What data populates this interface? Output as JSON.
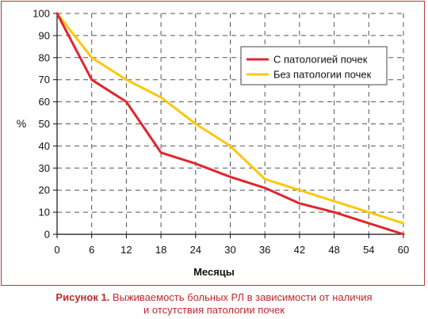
{
  "chart_data": {
    "type": "line",
    "xlabel": "Месяцы",
    "ylabel": "%",
    "x": [
      0,
      6,
      12,
      18,
      24,
      30,
      36,
      42,
      48,
      54,
      60
    ],
    "xlim": [
      0,
      60
    ],
    "ylim": [
      0,
      100
    ],
    "yticks": [
      0,
      10,
      20,
      30,
      40,
      50,
      60,
      70,
      80,
      90,
      100
    ],
    "grid": true,
    "legend_position": "top-right",
    "series": [
      {
        "name": "С патологией почек",
        "color": "#e0262d",
        "values": [
          100,
          70,
          60,
          37,
          32,
          26,
          21,
          14,
          10,
          5,
          0
        ]
      },
      {
        "name": "Без патологии почек",
        "color": "#fcc80a",
        "values": [
          100,
          80,
          70,
          62,
          50,
          40,
          25,
          20,
          15,
          10,
          5
        ]
      }
    ]
  },
  "caption": {
    "label": "Рисунок 1.",
    "line1": "Выживаемость больных РЛ в зависимости от наличия",
    "line2": "и отсутствия патологии почек"
  }
}
